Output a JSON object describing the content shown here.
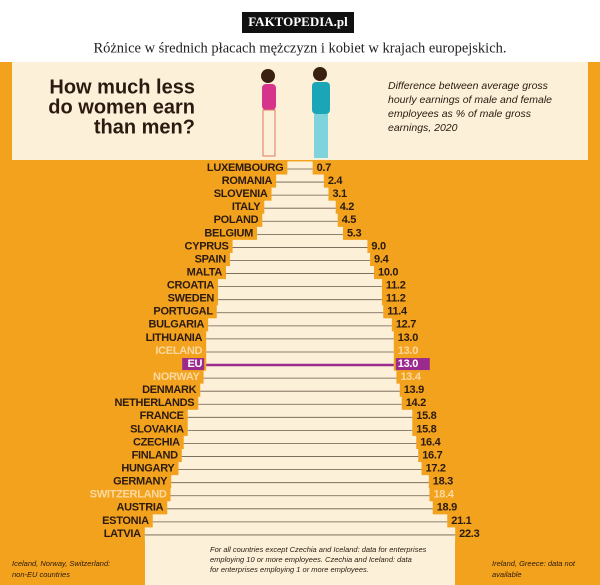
{
  "header": {
    "brand": "FAKTOPEDIA.pl",
    "caption": "Różnice w średnich płacach mężczyzn i kobiet w krajach europejskich."
  },
  "chart_data": {
    "type": "pyramid",
    "title": [
      "How much less",
      "do women earn",
      "than men?"
    ],
    "subtitle": [
      "Difference between average gross",
      "hourly earnings of male and female",
      "employees as % of male gross",
      "earnings, 2020"
    ],
    "categories": [
      "LUXEMBOURG",
      "ROMANIA",
      "SLOVENIA",
      "ITALY",
      "POLAND",
      "BELGIUM",
      "CYPRUS",
      "SPAIN",
      "MALTA",
      "CROATIA",
      "SWEDEN",
      "PORTUGAL",
      "BULGARIA",
      "LITHUANIA",
      "ICELAND",
      "EU",
      "NORWAY",
      "DENMARK",
      "NETHERLANDS",
      "FRANCE",
      "SLOVAKIA",
      "CZECHIA",
      "FINLAND",
      "HUNGARY",
      "GERMANY",
      "SWITZERLAND",
      "AUSTRIA",
      "ESTONIA",
      "LATVIA"
    ],
    "values": [
      0.7,
      2.4,
      3.1,
      4.2,
      4.5,
      5.3,
      9,
      9.4,
      10,
      11.2,
      11.2,
      11.4,
      12.7,
      13,
      13,
      13,
      13.4,
      13.9,
      14.2,
      15.8,
      15.8,
      16.4,
      16.7,
      17.2,
      18.3,
      18.4,
      18.9,
      21.1,
      22.3
    ],
    "value_labels": [
      "0.7",
      "2.4",
      "3.1",
      "4.2",
      "4.5",
      "5.3",
      "9.0",
      "9.4",
      "10.0",
      "11.2",
      "11.2",
      "11.4",
      "12.7",
      "13.0",
      "13.0",
      "13.0",
      "13.4",
      "13.9",
      "14.2",
      "15.8",
      "15.8",
      "16.4",
      "16.7",
      "17.2",
      "18.3",
      "18.4",
      "18.9",
      "21.1",
      "22.3"
    ],
    "label_colors": [
      "#2a1a10",
      "#2a1a10",
      "#2a1a10",
      "#2a1a10",
      "#2a1a10",
      "#2a1a10",
      "#2a1a10",
      "#2a1a10",
      "#2a1a10",
      "#2a1a10",
      "#2a1a10",
      "#2a1a10",
      "#2a1a10",
      "#2a1a10",
      "#fbd9a0",
      "#ffffff",
      "#fbd9a0",
      "#2a1a10",
      "#2a1a10",
      "#2a1a10",
      "#2a1a10",
      "#2a1a10",
      "#2a1a10",
      "#2a1a10",
      "#2a1a10",
      "#fbd9a0",
      "#2a1a10",
      "#2a1a10",
      "#2a1a10"
    ],
    "highlight_color": "#9b2a8e",
    "highlight_index": 15,
    "footnotes": {
      "left": [
        "Iceland, Norway, Switzerland:",
        "non-EU countries"
      ],
      "center": [
        "For all countries except Czechia and Iceland: data for enterprises",
        "employing 10 or more employees. Czechia and Iceland: data",
        "for enterprises employing 1 or more employees."
      ],
      "right": [
        "Ireland, Greece: data not",
        "available"
      ]
    }
  }
}
